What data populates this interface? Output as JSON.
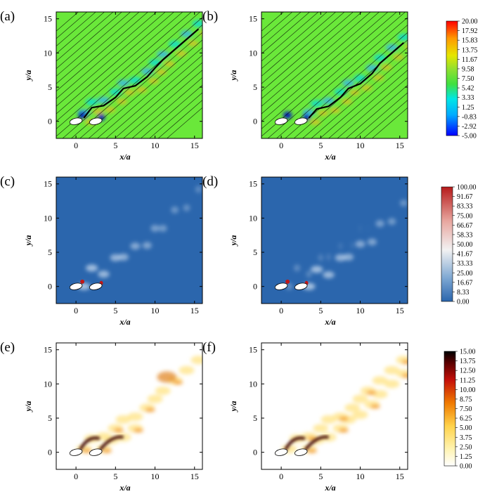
{
  "figure": {
    "panels": [
      {
        "label": "(a)",
        "row": 0,
        "col": 0
      },
      {
        "label": "(b)",
        "row": 0,
        "col": 1
      },
      {
        "label": "(c)",
        "row": 1,
        "col": 0
      },
      {
        "label": "(d)",
        "row": 1,
        "col": 1
      },
      {
        "label": "(e)",
        "row": 2,
        "col": 0
      },
      {
        "label": "(f)",
        "row": 2,
        "col": 1
      }
    ],
    "xlabel": "x/a",
    "ylabel": "y/a",
    "x_ticks": [
      "0",
      "5",
      "10",
      "15"
    ],
    "y_ticks": [
      "0",
      "5",
      "10",
      "15"
    ],
    "colorbars": [
      {
        "row": 0,
        "colormap": "rainbow",
        "labels": [
          "20.00",
          "17.92",
          "15.83",
          "13.75",
          "11.67",
          "9.58",
          "7.50",
          "5.42",
          "3.33",
          "1.25",
          "-0.83",
          "-2.92",
          "-5.00"
        ]
      },
      {
        "row": 1,
        "colormap": "blue-white-red",
        "labels": [
          "100.00",
          "91.67",
          "83.33",
          "75.00",
          "66.67",
          "58.33",
          "50.00",
          "41.67",
          "33.33",
          "25.00",
          "16.67",
          "8.33",
          "0.00"
        ]
      },
      {
        "row": 2,
        "colormap": "white-yellow-red-black",
        "labels": [
          "15.00",
          "13.75",
          "12.50",
          "11.25",
          "10.00",
          "8.75",
          "7.50",
          "6.25",
          "5.00",
          "3.75",
          "2.50",
          "1.25",
          "0.00"
        ]
      }
    ]
  },
  "chart_data": {
    "type": "heatmap",
    "title": "",
    "xlabel": "x/a",
    "ylabel": "y/a",
    "xlim": [
      -2.5,
      16
    ],
    "ylim": [
      -2.5,
      16
    ],
    "x_ticks": [
      0,
      5,
      10,
      15
    ],
    "y_ticks": [
      0,
      5,
      10,
      15
    ],
    "grid": false,
    "legend": "colorbar right of each row",
    "bodies": [
      {
        "x": 0,
        "y": 0,
        "shape": "ellipse"
      },
      {
        "x": 2.5,
        "y": 0,
        "shape": "ellipse"
      }
    ],
    "rows": [
      {
        "panels": [
          "(a)",
          "(b)"
        ],
        "range": [
          -5,
          20
        ],
        "colormap": "rainbow"
      },
      {
        "panels": [
          "(c)",
          "(d)"
        ],
        "range": [
          0,
          100
        ],
        "colormap": "blue-white-red"
      },
      {
        "panels": [
          "(e)",
          "(f)"
        ],
        "range": [
          0,
          15
        ],
        "colormap": "white-yellow-red-black"
      }
    ]
  },
  "colors": {
    "green_bg": "#6ae83a",
    "blue_bg": "#2b66ad",
    "axis": "#000000"
  }
}
